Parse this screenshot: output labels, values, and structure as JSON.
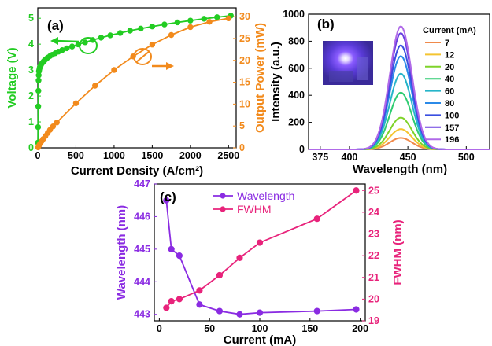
{
  "chart_data": [
    {
      "panel": "(a)",
      "type": "line",
      "xlabel": "Current Density (A/cm²)",
      "xlim": [
        0,
        2600
      ],
      "xticks": [
        "0",
        "500",
        "1000",
        "1500",
        "2000",
        "2500"
      ],
      "ylabel_left": "Voltage (V)",
      "ylim_left": [
        0,
        5.4
      ],
      "yticks_left": [
        "0",
        "1",
        "2",
        "3",
        "4",
        "5"
      ],
      "ylabel_right": "Output Power (mW)",
      "ylim_right": [
        0,
        32
      ],
      "yticks_right": [
        "0",
        "5",
        "10",
        "15",
        "20",
        "25",
        "30"
      ],
      "colors": {
        "voltage": "#22cc22",
        "power": "#f28a1c"
      },
      "series": [
        {
          "name": "Voltage",
          "axis": "left",
          "x": [
            2,
            4,
            6,
            8,
            10,
            12,
            15,
            18,
            22,
            26,
            30,
            35,
            40,
            50,
            60,
            75,
            90,
            110,
            130,
            160,
            190,
            230,
            270,
            320,
            380,
            450,
            530,
            620,
            720,
            830,
            950,
            1080,
            1210,
            1350,
            1500,
            1660,
            1830,
            2000,
            2180,
            2350,
            2530
          ],
          "values": [
            0.2,
            0.8,
            1.6,
            2.2,
            2.6,
            2.8,
            2.95,
            3.0,
            3.05,
            3.1,
            3.13,
            3.16,
            3.19,
            3.24,
            3.28,
            3.33,
            3.38,
            3.43,
            3.48,
            3.54,
            3.59,
            3.65,
            3.71,
            3.77,
            3.84,
            3.91,
            3.99,
            4.07,
            4.16,
            4.25,
            4.34,
            4.43,
            4.52,
            4.6,
            4.68,
            4.76,
            4.84,
            4.91,
            4.98,
            5.04,
            5.1
          ]
        },
        {
          "name": "Output Power",
          "axis": "right",
          "x": [
            5,
            15,
            30,
            50,
            70,
            100,
            130,
            160,
            200,
            250,
            500,
            750,
            1000,
            1250,
            1500,
            1750,
            2000,
            2250,
            2500
          ],
          "values": [
            0.1,
            0.5,
            1.0,
            1.5,
            2.0,
            2.7,
            3.4,
            4.1,
            4.9,
            5.8,
            10.2,
            14.2,
            17.8,
            20.9,
            23.6,
            25.8,
            27.6,
            28.8,
            29.6
          ]
        }
      ]
    },
    {
      "panel": "(b)",
      "type": "line",
      "xlabel": "Wavelength (nm)",
      "xlim": [
        365,
        520
      ],
      "xticks": [
        "375",
        "400",
        "450",
        "500"
      ],
      "ylabel": "Intensity (a.u.)",
      "ylim": [
        0,
        1000
      ],
      "yticks": [
        "0",
        "200",
        "400",
        "600",
        "800",
        "1000"
      ],
      "legend_title": "Current (mA)",
      "legend_placement": "right",
      "peak_wavelength": 444,
      "series": [
        {
          "name": "7",
          "peak": 85,
          "color": "#f08a4b"
        },
        {
          "name": "12",
          "peak": 150,
          "color": "#f4c430"
        },
        {
          "name": "20",
          "peak": 235,
          "color": "#7fd32a"
        },
        {
          "name": "40",
          "peak": 420,
          "color": "#2ecc71"
        },
        {
          "name": "60",
          "peak": 560,
          "color": "#26b5c9"
        },
        {
          "name": "80",
          "peak": 690,
          "color": "#2b8ae8"
        },
        {
          "name": "100",
          "peak": 770,
          "color": "#3a4fe0"
        },
        {
          "name": "157",
          "peak": 860,
          "color": "#6a3fe0"
        },
        {
          "name": "196",
          "peak": 910,
          "color": "#b06ae8"
        }
      ]
    },
    {
      "panel": "(c)",
      "type": "line",
      "xlabel": "Current (mA)",
      "xlim": [
        -5,
        205
      ],
      "xticks": [
        "0",
        "50",
        "100",
        "150",
        "200"
      ],
      "ylabel_left": "Wavelength (nm)",
      "ylim_left": [
        442.8,
        447
      ],
      "yticks_left": [
        "443",
        "444",
        "445",
        "446",
        "447"
      ],
      "ylabel_right": "FWHM (nm)",
      "ylim_right": [
        19,
        25.3
      ],
      "yticks_right": [
        "19",
        "20",
        "21",
        "22",
        "23",
        "24",
        "25"
      ],
      "legend_placement": "top-center",
      "colors": {
        "wavelength": "#8a2be2",
        "fwhm": "#e8237b"
      },
      "series": [
        {
          "name": "Wavelength",
          "axis": "left",
          "x": [
            7,
            12,
            20,
            40,
            60,
            80,
            100,
            157,
            196
          ],
          "values": [
            446.5,
            445.0,
            444.8,
            443.3,
            443.1,
            443.0,
            443.05,
            443.1,
            443.15
          ]
        },
        {
          "name": "FWHM",
          "axis": "right",
          "x": [
            7,
            12,
            20,
            40,
            60,
            80,
            100,
            157,
            196
          ],
          "values": [
            19.6,
            19.9,
            20.0,
            20.4,
            21.1,
            21.9,
            22.6,
            23.7,
            25.0
          ]
        }
      ]
    }
  ]
}
